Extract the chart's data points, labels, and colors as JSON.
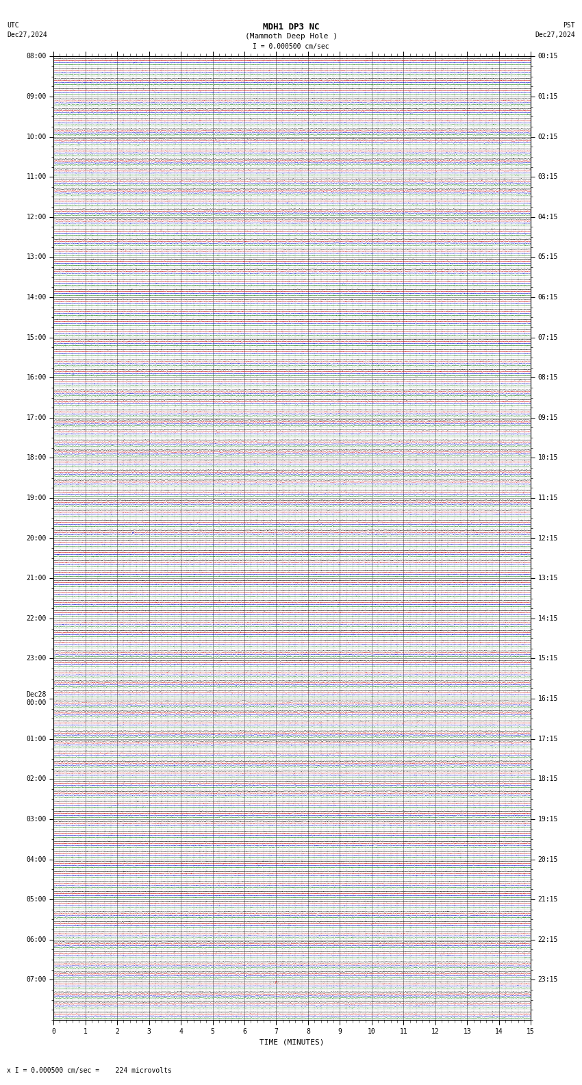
{
  "title_line1": "MDH1 DP3 NC",
  "title_line2": "(Mammoth Deep Hole )",
  "scale_text": "I = 0.000500 cm/sec",
  "footer_text": "x I = 0.000500 cm/sec =    224 microvolts",
  "utc_label": "UTC",
  "utc_date": "Dec27,2024",
  "pst_label": "PST",
  "pst_date": "Dec27,2024",
  "xlabel": "TIME (MINUTES)",
  "left_times_labeled": [
    "08:00",
    "09:00",
    "10:00",
    "11:00",
    "12:00",
    "13:00",
    "14:00",
    "15:00",
    "16:00",
    "17:00",
    "18:00",
    "19:00",
    "20:00",
    "21:00",
    "22:00",
    "23:00",
    "Dec28\n00:00",
    "01:00",
    "02:00",
    "03:00",
    "04:00",
    "05:00",
    "06:00",
    "07:00"
  ],
  "left_times_rows": [
    0,
    4,
    8,
    12,
    16,
    20,
    24,
    28,
    32,
    36,
    40,
    44,
    48,
    52,
    56,
    60,
    64,
    68,
    72,
    76,
    80,
    84,
    88,
    92
  ],
  "right_times_labeled": [
    "00:15",
    "01:15",
    "02:15",
    "03:15",
    "04:15",
    "05:15",
    "06:15",
    "07:15",
    "08:15",
    "09:15",
    "10:15",
    "11:15",
    "12:15",
    "13:15",
    "14:15",
    "15:15",
    "16:15",
    "17:15",
    "18:15",
    "19:15",
    "20:15",
    "21:15",
    "22:15",
    "23:15"
  ],
  "right_times_rows": [
    0,
    4,
    8,
    12,
    16,
    20,
    24,
    28,
    32,
    36,
    40,
    44,
    48,
    52,
    56,
    60,
    64,
    68,
    72,
    76,
    80,
    84,
    88,
    92
  ],
  "num_rows": 96,
  "minutes_per_row": 15,
  "traces_per_row": 4,
  "trace_colors": [
    "#000000",
    "#cc0000",
    "#0000cc",
    "#007700"
  ],
  "bg_color": "#ffffff",
  "grid_major_color": "#888888",
  "grid_minor_color": "#bbbbbb",
  "trace_amplitude": 0.025,
  "trace_noise_scale": 0.018,
  "special_spike_row": 47,
  "special_spike_col": 2.5,
  "special_spike_trace": 2,
  "special_spike2_row": 92,
  "special_spike2_col": 7.0,
  "special_spike2_trace": 1
}
